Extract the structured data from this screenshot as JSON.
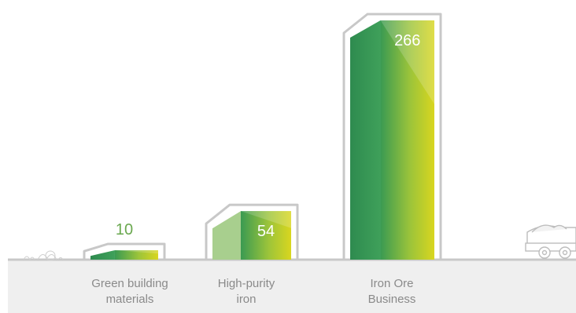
{
  "colors": {
    "green_dark": "#2e8b4f",
    "green_light_panel": "#a8cf8e",
    "yellow_green": "#d6d51e",
    "value_label_green": "#6aa84f",
    "value_label_white": "#ffffff",
    "baseline_gray": "#c8c8c8",
    "ground_fill": "#efefef",
    "category_text": "#8a8a8a"
  },
  "icons": [
    "mining-dump-truck-icon",
    "grass-decoration-icon"
  ],
  "chart_data": {
    "type": "bar",
    "title": "",
    "xlabel": "",
    "ylabel": "",
    "categories": [
      "Green building\nmaterials",
      "High-purity\niron",
      "Iron Ore\nBusiness"
    ],
    "values": [
      10,
      54,
      266
    ],
    "value_labels": [
      "10",
      "54",
      "266"
    ],
    "ylim": [
      0,
      266
    ],
    "grid": false,
    "legend": "none"
  }
}
